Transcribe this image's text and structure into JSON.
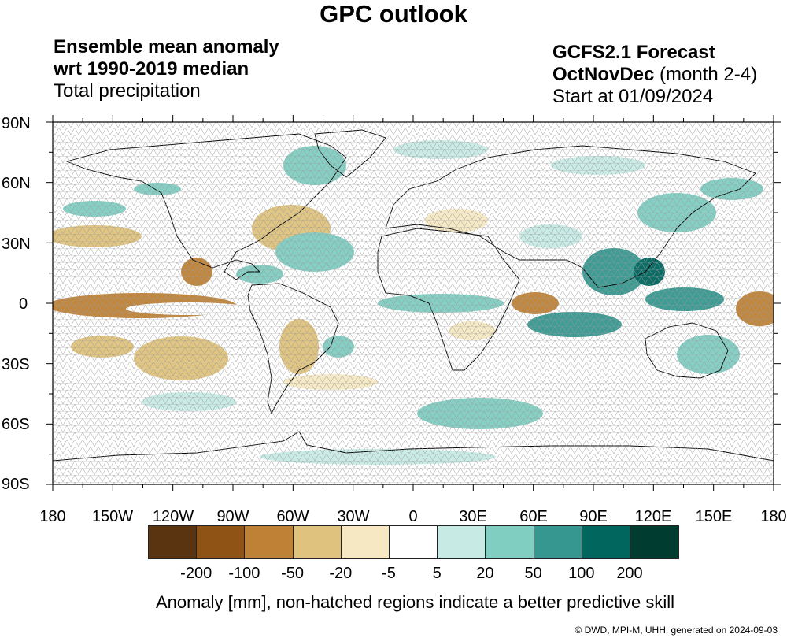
{
  "header": {
    "title": "GPC outlook",
    "left_line1": "Ensemble mean anomaly",
    "left_line2": "wrt 1990-2019 median",
    "left_line3": "Total precipitation",
    "right_line1": "GCFS2.1 Forecast",
    "right_line2_bold": "OctNovDec",
    "right_line2_rest": " (month 2-4)",
    "right_line3": "Start at 01/09/2024"
  },
  "axes": {
    "lat_labels": [
      "90N",
      "60N",
      "30N",
      "0",
      "30S",
      "60S",
      "90S"
    ],
    "lon_labels": [
      "180",
      "150W",
      "120W",
      "90W",
      "60W",
      "30W",
      "0",
      "30E",
      "60E",
      "90E",
      "120E",
      "150E",
      "180"
    ]
  },
  "colorbar": {
    "colors": [
      "#5a3310",
      "#8f5316",
      "#be8135",
      "#dfc27d",
      "#f6e8c3",
      "#ffffff",
      "#c7eae5",
      "#80cdc1",
      "#35978f",
      "#01665e",
      "#003c30"
    ],
    "thresholds": [
      "-200",
      "-100",
      "-50",
      "-20",
      "-5",
      "5",
      "20",
      "50",
      "100",
      "200"
    ]
  },
  "caption": "Anomaly [mm], non-hatched regions indicate a better predictive skill",
  "credit": "©  DWD, MPI-M, UHH: generated on 2024-09-03"
}
